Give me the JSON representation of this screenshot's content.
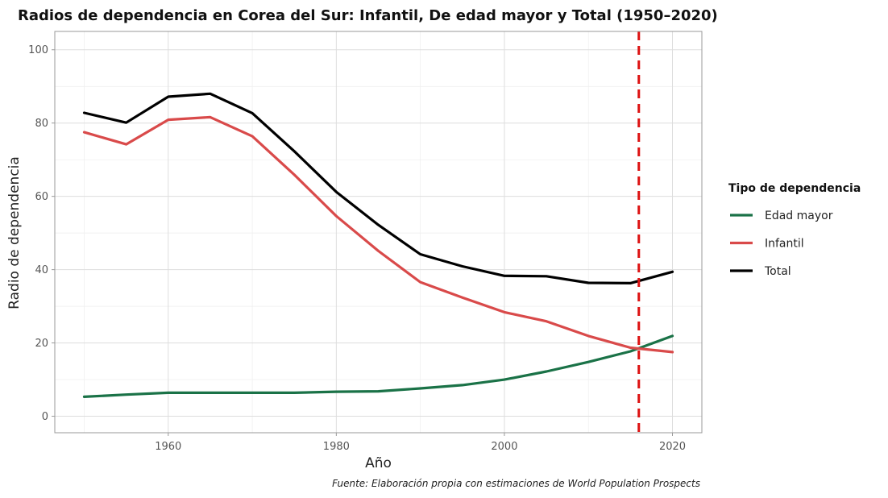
{
  "chart_data": {
    "type": "line",
    "title": "Radios de dependencia en Corea del Sur: Infantil, De edad mayor y Total (1950–2020)",
    "xlabel": "Año",
    "ylabel": "Radio de dependencia",
    "caption": "Fuente: Elaboración propia con estimaciones de World Population Prospects",
    "xlim": [
      1946.5,
      2023.5
    ],
    "ylim": [
      -4.5,
      105
    ],
    "x_ticks": [
      1960,
      1980,
      2000,
      2020
    ],
    "y_ticks": [
      0,
      20,
      40,
      60,
      80,
      100
    ],
    "grid": true,
    "legend": {
      "title": "Tipo de dependencia",
      "placement": "right"
    },
    "x": [
      1950,
      1955,
      1960,
      1965,
      1970,
      1975,
      1980,
      1985,
      1990,
      1995,
      2000,
      2005,
      2010,
      2015,
      2020
    ],
    "series": [
      {
        "name": "Edad mayor",
        "color": "#1a7247",
        "values": [
          5.3,
          5.9,
          6.4,
          6.4,
          6.4,
          6.4,
          6.7,
          6.8,
          7.6,
          8.5,
          10.0,
          12.2,
          14.8,
          17.7,
          21.9
        ]
      },
      {
        "name": "Infantil",
        "color": "#d94a4a",
        "values": [
          77.5,
          74.2,
          80.9,
          81.6,
          76.4,
          65.9,
          54.6,
          45.1,
          36.6,
          32.4,
          28.4,
          25.9,
          21.9,
          18.7,
          17.5
        ]
      },
      {
        "name": "Total",
        "color": "#000000",
        "values": [
          82.8,
          80.1,
          87.2,
          88.0,
          82.7,
          72.3,
          61.2,
          52.2,
          44.2,
          40.9,
          38.3,
          38.2,
          36.4,
          36.3,
          39.4
        ]
      }
    ],
    "reference_line": {
      "x": 2016,
      "color": "#dd1111",
      "style": "dashed"
    }
  }
}
